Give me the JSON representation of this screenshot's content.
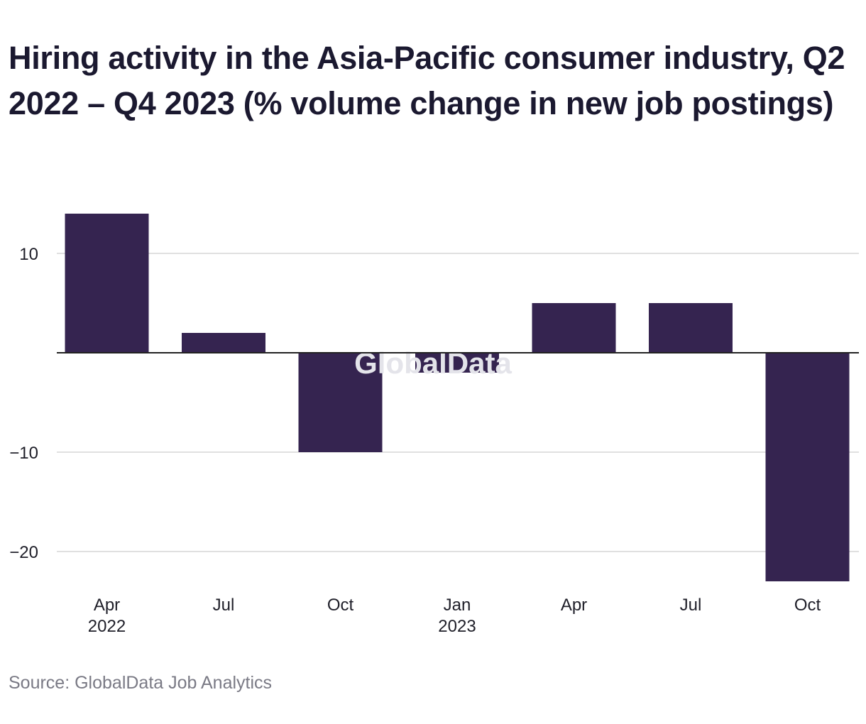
{
  "title": "Hiring activity in the Asia-Pacific consumer industry, Q2 2022 – Q4 2023 (% volume change in new job postings)",
  "source": "Source: GlobalData Job Analytics",
  "watermark": "GlobalData",
  "colors": {
    "bar": "#352450",
    "grid": "#d6d6d6",
    "zero_line": "#222222",
    "text": "#1e1e28"
  },
  "chart_data": {
    "type": "bar",
    "title": "Hiring activity in the Asia-Pacific consumer industry, Q2 2022 – Q4 2023 (% volume change in new job postings)",
    "categories": [
      "Apr 2022",
      "Jul",
      "Oct",
      "Jan 2023",
      "Apr",
      "Jul",
      "Oct"
    ],
    "category_labels": [
      [
        "Apr",
        "2022"
      ],
      [
        "Jul"
      ],
      [
        "Oct"
      ],
      [
        "Jan",
        "2023"
      ],
      [
        "Apr"
      ],
      [
        "Jul"
      ],
      [
        "Oct"
      ]
    ],
    "values": [
      14,
      2,
      -10,
      -2,
      5,
      5,
      -23
    ],
    "yticks": [
      10,
      -10,
      -20
    ],
    "ytick_labels": [
      "10",
      "−10",
      "−20"
    ],
    "ylim": [
      -24,
      16
    ],
    "grid": true,
    "legend": "none",
    "xlabel": "",
    "ylabel": ""
  }
}
